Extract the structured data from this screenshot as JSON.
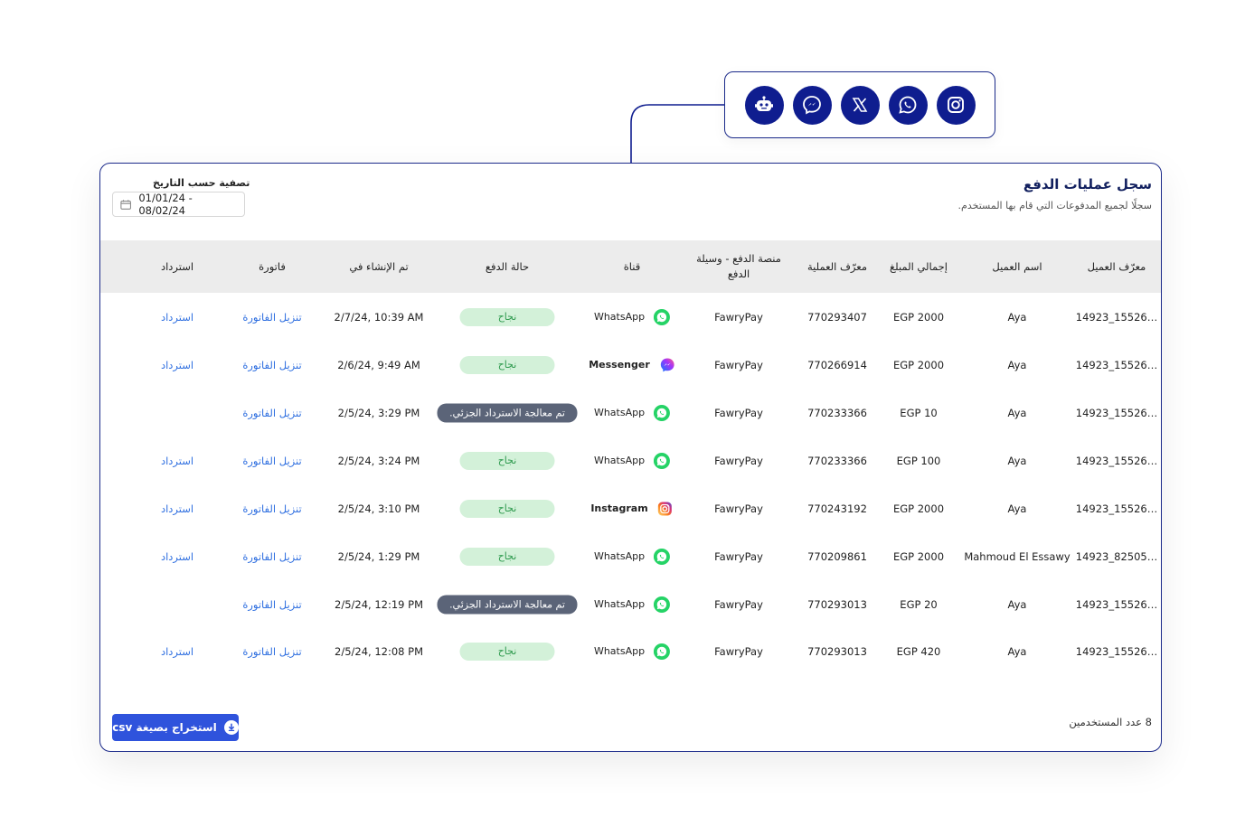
{
  "colors": {
    "accent_navy": "#0f1d8f",
    "border_navy": "#1b2a8a",
    "link_blue": "#2f6fe0",
    "success_bg": "#d3f1d9",
    "success_text": "#2e9a4e",
    "partial_bg": "#5b6478",
    "export_button": "#2f53dc",
    "whatsapp_green": "#25d366"
  },
  "channels_bar": {
    "icons": [
      "chatbot-icon",
      "messenger-icon",
      "x-icon",
      "whatsapp-icon",
      "instagram-icon"
    ]
  },
  "header": {
    "title": "سجل عمليات الدفع",
    "subtitle": "سجلًا لجميع المدفوعات التي قام بها المستخدم.",
    "filter_label": "تصفية حسب التاريخ",
    "date_range": "01/01/24 - 08/02/24",
    "calendar_icon": "calendar-icon"
  },
  "table": {
    "columns": {
      "customer_id": "معرّف العميل",
      "customer_name": "اسم العميل",
      "total": "إجمالي المبلغ",
      "transaction_id": "معرّف العملية",
      "platform": "منصة الدفع - وسيلة الدفع",
      "channel": "قناة",
      "status": "حالة الدفع",
      "created": "تم الإنشاء في",
      "invoice": "فاتورة",
      "refund": "استرداد"
    },
    "rows": [
      {
        "customer_id": "14923_15526…",
        "customer_name": "Aya",
        "total": "EGP 2000",
        "transaction_id": "770293407",
        "platform": "FawryPay",
        "channel": "WhatsApp",
        "channel_icon": "whatsapp-icon",
        "status": "نجاح",
        "status_type": "success",
        "created": "2/7/24, 10:39 AM",
        "invoice": "تنزيل الفاتورة",
        "refund": "استرداد"
      },
      {
        "customer_id": "14923_15526…",
        "customer_name": "Aya",
        "total": "EGP 2000",
        "transaction_id": "770266914",
        "platform": "FawryPay",
        "channel": "Messenger",
        "channel_icon": "messenger-icon",
        "status": "نجاح",
        "status_type": "success",
        "created": "2/6/24, 9:49 AM",
        "invoice": "تنزيل الفاتورة",
        "refund": "استرداد"
      },
      {
        "customer_id": "14923_15526…",
        "customer_name": "Aya",
        "total": "EGP 10",
        "transaction_id": "770233366",
        "platform": "FawryPay",
        "channel": "WhatsApp",
        "channel_icon": "whatsapp-icon",
        "status": "تم معالجة الاسترداد الجزئي.",
        "status_type": "partial",
        "created": "2/5/24, 3:29 PM",
        "invoice": "تنزيل الفاتورة",
        "refund": ""
      },
      {
        "customer_id": "14923_15526…",
        "customer_name": "Aya",
        "total": "EGP 100",
        "transaction_id": "770233366",
        "platform": "FawryPay",
        "channel": "WhatsApp",
        "channel_icon": "whatsapp-icon",
        "status": "نجاح",
        "status_type": "success",
        "created": "2/5/24, 3:24 PM",
        "invoice": "تنزيل الفاتورة",
        "refund": "استرداد"
      },
      {
        "customer_id": "14923_15526…",
        "customer_name": "Aya",
        "total": "EGP 2000",
        "transaction_id": "770243192",
        "platform": "FawryPay",
        "channel": "Instagram",
        "channel_icon": "instagram-icon",
        "status": "نجاح",
        "status_type": "success",
        "created": "2/5/24, 3:10 PM",
        "invoice": "تنزيل الفاتورة",
        "refund": "استرداد"
      },
      {
        "customer_id": "14923_82505…",
        "customer_name": "Mahmoud El Essawy",
        "total": "EGP 2000",
        "transaction_id": "770209861",
        "platform": "FawryPay",
        "channel": "WhatsApp",
        "channel_icon": "whatsapp-icon",
        "status": "نجاح",
        "status_type": "success",
        "created": "2/5/24, 1:29 PM",
        "invoice": "تنزيل الفاتورة",
        "refund": "استرداد"
      },
      {
        "customer_id": "14923_15526…",
        "customer_name": "Aya",
        "total": "EGP 20",
        "transaction_id": "770293013",
        "platform": "FawryPay",
        "channel": "WhatsApp",
        "channel_icon": "whatsapp-icon",
        "status": "تم معالجة الاسترداد الجزئي.",
        "status_type": "partial",
        "created": "2/5/24, 12:19 PM",
        "invoice": "تنزيل الفاتورة",
        "refund": ""
      },
      {
        "customer_id": "14923_15526…",
        "customer_name": "Aya",
        "total": "EGP 420",
        "transaction_id": "770293013",
        "platform": "FawryPay",
        "channel": "WhatsApp",
        "channel_icon": "whatsapp-icon",
        "status": "نجاح",
        "status_type": "success",
        "created": "2/5/24, 12:08 PM",
        "invoice": "تنزيل الفاتورة",
        "refund": "استرداد"
      }
    ]
  },
  "footer": {
    "count_text": "8 عدد المستخدمين",
    "export_label": "استخراج بصيغة csv",
    "export_icon": "download-icon"
  }
}
